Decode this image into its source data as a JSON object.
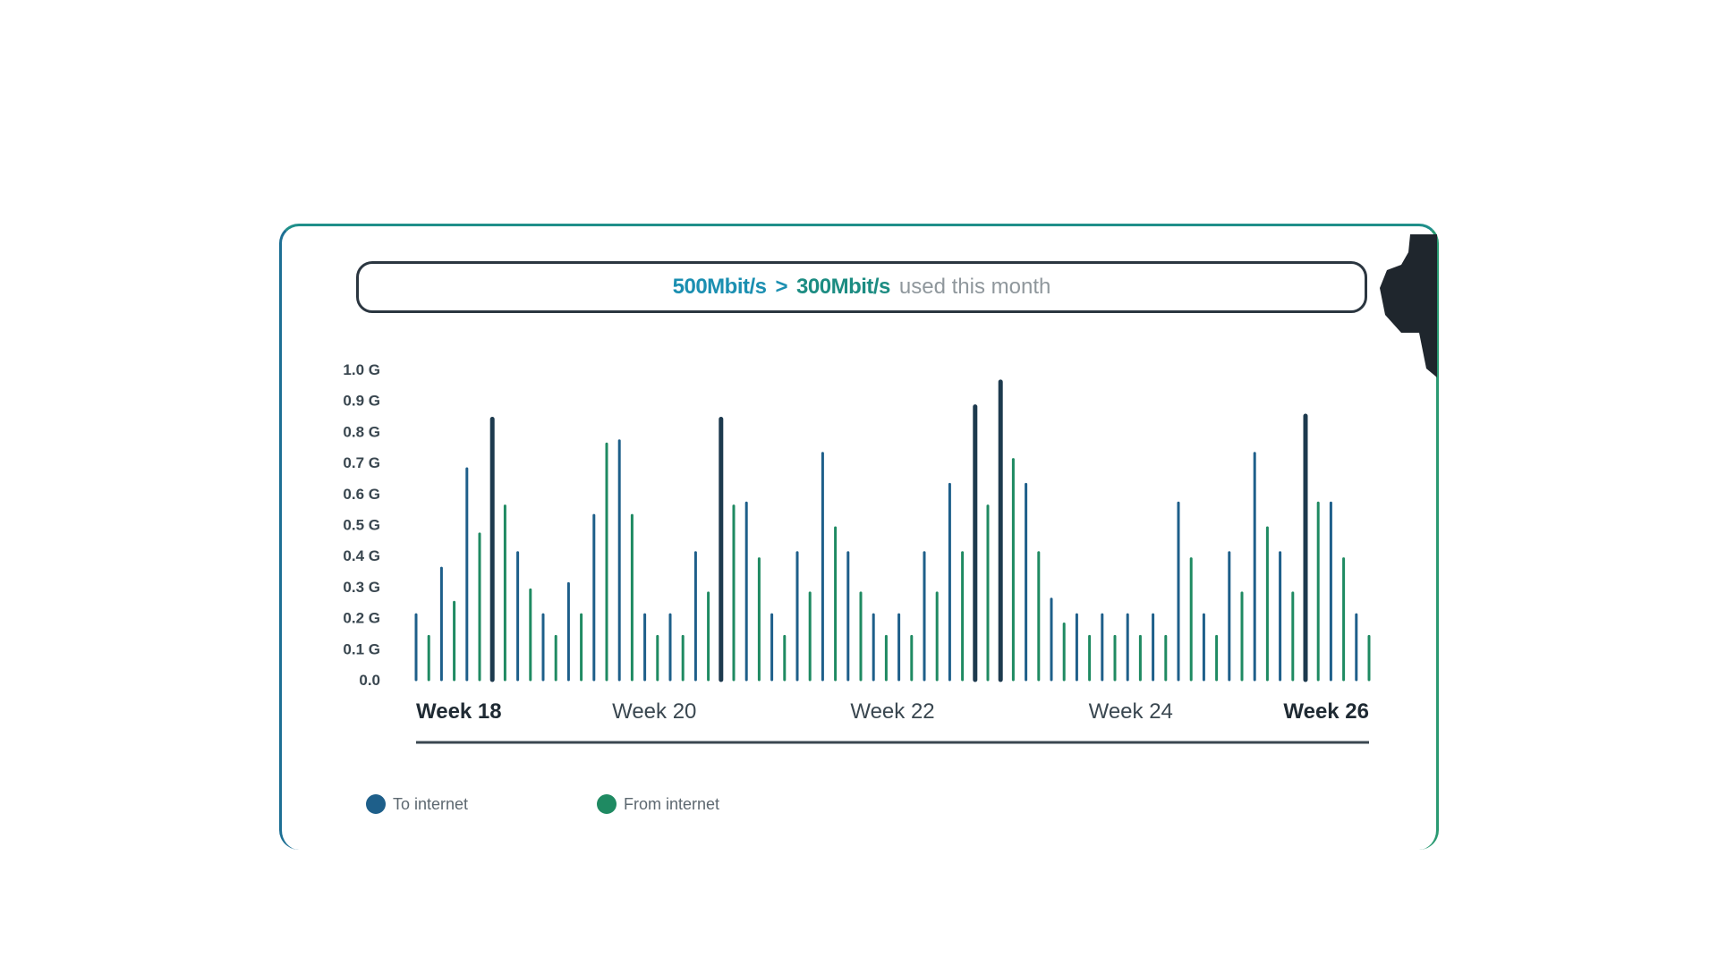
{
  "header": {
    "value_a": "500Mbit/s",
    "separator": ">",
    "value_b": "300Mbit/s",
    "suffix": "used this month"
  },
  "colors": {
    "to_internet": "#1e5f8a",
    "from_internet": "#1f8a62",
    "dark_bar": "#1d3a4e",
    "accent_teal": "#1b8fb1"
  },
  "chart_data": {
    "type": "bar",
    "y_ticks": [
      "1.0 G",
      "0.9 G",
      "0.8 G",
      "0.7 G",
      "0.6 G",
      "0.5 G",
      "0.4 G",
      "0.3 G",
      "0.2 G",
      "0.1 G",
      "0.0"
    ],
    "ylim": [
      0,
      1.0
    ],
    "x_tick_labels": [
      "Week 18",
      "Week 20",
      "Week 22",
      "Week 24",
      "Week 26"
    ],
    "legend": [
      "To internet",
      "From internet"
    ],
    "values": [
      0.21,
      0.14,
      0.36,
      0.25,
      0.68,
      0.47,
      0.84,
      0.56,
      0.41,
      0.29,
      0.21,
      0.14,
      0.31,
      0.21,
      0.53,
      0.76,
      0.77,
      0.53,
      0.21,
      0.14,
      0.21,
      0.14,
      0.41,
      0.28,
      0.84,
      0.56,
      0.57,
      0.39,
      0.21,
      0.14,
      0.41,
      0.28,
      0.73,
      0.49,
      0.41,
      0.28,
      0.21,
      0.14,
      0.21,
      0.14,
      0.41,
      0.28,
      0.63,
      0.41,
      0.88,
      0.56,
      0.96,
      0.71,
      0.63,
      0.41,
      0.26,
      0.18,
      0.21,
      0.14,
      0.21,
      0.14,
      0.21,
      0.14,
      0.21,
      0.14,
      0.57,
      0.39,
      0.21,
      0.14,
      0.41,
      0.28,
      0.73,
      0.49,
      0.41,
      0.28,
      0.85,
      0.57,
      0.57,
      0.39,
      0.21,
      0.14
    ]
  }
}
